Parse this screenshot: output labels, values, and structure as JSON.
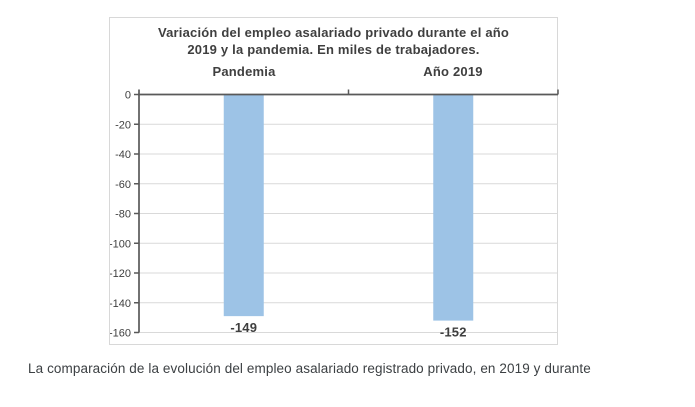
{
  "chart_data": {
    "type": "bar",
    "title": "Variación del empleo asalariado privado durante el año 2019 y la pandemia. En miles de trabajadores.",
    "title_lines": [
      "Variación del empleo asalariado privado durante el año",
      "2019 y la pandemia. En miles de trabajadores."
    ],
    "categories": [
      "Pandemia",
      "Año 2019"
    ],
    "values": [
      -149,
      -152
    ],
    "data_labels": [
      "-149",
      "-152"
    ],
    "xlabel": "",
    "ylabel": "",
    "ylim": [
      -160,
      0
    ],
    "yticks": [
      0,
      -20,
      -40,
      -60,
      -80,
      -100,
      -120,
      -140,
      -160
    ],
    "grid": true,
    "legend": "none",
    "bar_color": "#9dc3e6",
    "grid_color": "#d9d9d9",
    "axis_color": "#595959",
    "text_color": "#3f3f3f"
  },
  "caption": {
    "text": "La comparación de la evolución del empleo asalariado registrado privado, en 2019 y durante"
  }
}
